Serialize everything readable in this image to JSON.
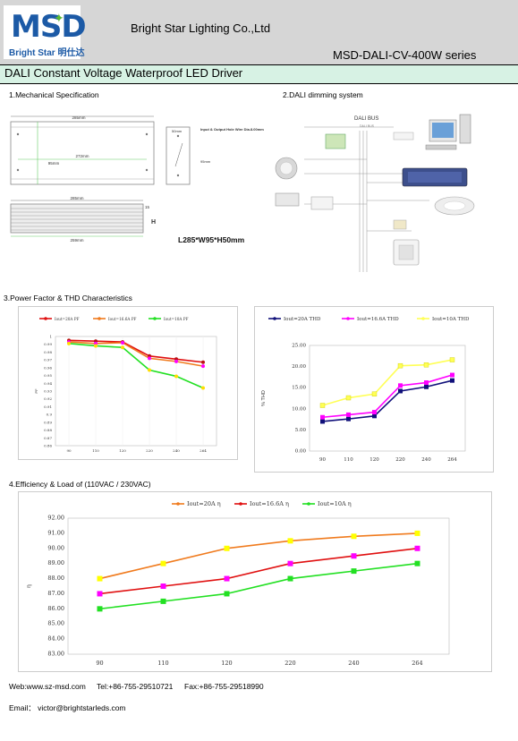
{
  "header": {
    "logo_text": "MSD",
    "logo_sub": "Bright Star 明仕达",
    "company": "Bright Star Lighting Co.,Ltd",
    "series": "MSD-DALI-CV-400W series"
  },
  "title": "DALI Constant Voltage Waterproof LED Driver",
  "sections": {
    "mech": "1.Mechanical Specification",
    "dali": "2.DALI dimming system",
    "pf_thd": "3.Power Factor & THD Characteristics",
    "eff": "4.Efficiency & Load of (110VAC / 230VAC)"
  },
  "mechanical": {
    "dim_top": "285mm",
    "dim_inner": "272mm",
    "dim_height": "95mm",
    "dim_side_w": "50mm",
    "dim_side_h": "95mm",
    "hole_note": "Input & Output Hole Wire Dia.8.00mm",
    "dim_bottom_top": "285mm",
    "dim_bottom": "259mm",
    "dim_15": "15",
    "dim_h": "H",
    "summary": "L285*W95*H50mm"
  },
  "dali_system": {
    "bus_label": "DALI BUS",
    "bus_sub": "DALI BUS"
  },
  "colors": {
    "header_bg": "#d6d6d6",
    "title_bg": "#d7f2e4",
    "red": "#e01010",
    "orange": "#f07b1e",
    "green": "#22e022",
    "navy": "#10107a",
    "magenta": "#ff00ff",
    "yellow": "#ffff55"
  },
  "chart_data": [
    {
      "type": "line",
      "title": "",
      "categories": [
        "90",
        "110",
        "120",
        "220",
        "240",
        "264"
      ],
      "ylim": [
        0.86,
        1.0
      ],
      "yticks": [
        "1",
        "0.99",
        "0.98",
        "0.97",
        "0.96",
        "0.95",
        "0.94",
        "0.93",
        "0.92",
        "0.91",
        "0.9",
        "0.89",
        "0.88",
        "0.87",
        "0.86"
      ],
      "ylabel": "PF",
      "series": [
        {
          "name": "Iout=20A PF",
          "color": "#e01010",
          "values": [
            0.995,
            0.994,
            0.993,
            0.975,
            0.971,
            0.967
          ]
        },
        {
          "name": "Iout=16.6A PF",
          "color": "#f07b1e",
          "values": [
            0.993,
            0.991,
            0.992,
            0.972,
            0.968,
            0.962
          ]
        },
        {
          "name": "Iout=10A PF",
          "color": "#22e022",
          "values": [
            0.991,
            0.988,
            0.986,
            0.957,
            0.949,
            0.934
          ]
        }
      ],
      "legend": "top"
    },
    {
      "type": "line",
      "title": "",
      "categories": [
        "90",
        "110",
        "120",
        "220",
        "240",
        "264"
      ],
      "ylim": [
        0,
        25
      ],
      "yticks": [
        "25.00",
        "20.00",
        "15.00",
        "10.00",
        "5.00",
        "0.00"
      ],
      "ylabel": "% THD",
      "series": [
        {
          "name": "Iout=20A THD",
          "color": "#10107a",
          "values": [
            7.0,
            7.6,
            8.3,
            14.2,
            15.2,
            16.7
          ]
        },
        {
          "name": "Iout=16.6A THD",
          "color": "#ff00ff",
          "values": [
            8.0,
            8.6,
            9.2,
            15.5,
            16.2,
            18.0
          ]
        },
        {
          "name": "Iout=10A THD",
          "color": "#ffff55",
          "values": [
            10.8,
            12.6,
            13.5,
            20.2,
            20.4,
            21.6
          ]
        }
      ],
      "legend": "top"
    },
    {
      "type": "line",
      "title": "",
      "categories": [
        "90",
        "110",
        "120",
        "220",
        "240",
        "264"
      ],
      "ylim": [
        83,
        92
      ],
      "yticks": [
        "92.00",
        "91.00",
        "90.00",
        "89.00",
        "88.00",
        "87.00",
        "86.00",
        "85.00",
        "84.00",
        "83.00"
      ],
      "ylabel": "η",
      "series": [
        {
          "name": "Iout=20A η",
          "color": "#f07b1e",
          "values": [
            88.0,
            89.0,
            90.0,
            90.5,
            90.8,
            91.0
          ]
        },
        {
          "name": "Iout=16.6A η",
          "color": "#e01010",
          "values": [
            87.0,
            87.5,
            88.0,
            89.0,
            89.5,
            90.0
          ]
        },
        {
          "name": "Iout=10A η",
          "color": "#22e022",
          "values": [
            86.0,
            86.5,
            87.0,
            88.0,
            88.5,
            89.0
          ]
        }
      ],
      "legend": "top"
    }
  ],
  "footer": {
    "web": "Web:www.sz-msd.com",
    "tel": "Tel:+86-755-29510721",
    "fax": "Fax:+86-755-29518990",
    "email": "Email： victor@brightstarleds.com"
  }
}
